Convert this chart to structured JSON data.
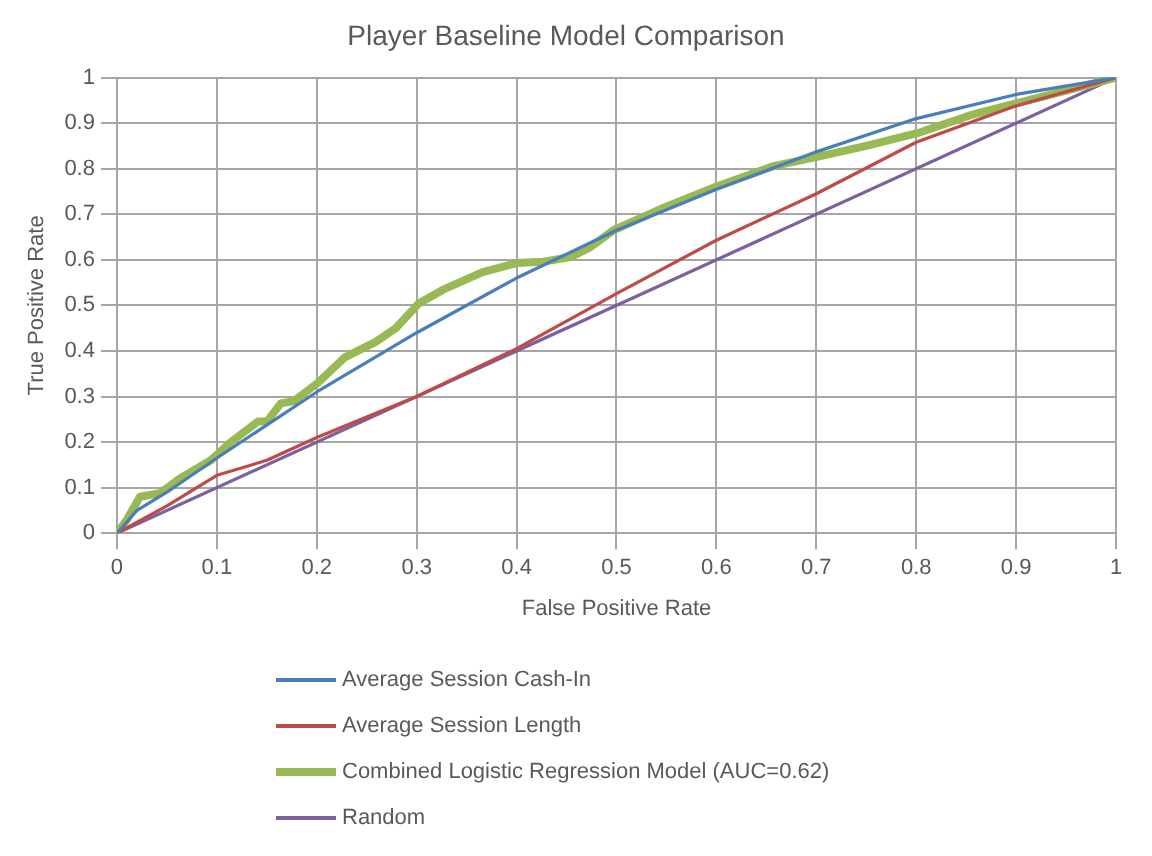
{
  "chart_data": {
    "type": "line",
    "title": "Player Baseline Model Comparison",
    "xlabel": "False Positive Rate",
    "ylabel": "True Positive Rate",
    "xlim": [
      0,
      1
    ],
    "ylim": [
      0,
      1
    ],
    "xticks": [
      0,
      0.1,
      0.2,
      0.3,
      0.4,
      0.5,
      0.6,
      0.7,
      0.8,
      0.9,
      1
    ],
    "yticks": [
      0,
      0.1,
      0.2,
      0.3,
      0.4,
      0.5,
      0.6,
      0.7,
      0.8,
      0.9,
      1
    ],
    "grid": true,
    "legend": "bottom",
    "marker": "none",
    "line_style": "solid",
    "series": [
      {
        "name": "Average Session Cash-In",
        "color": "#4a7ebb",
        "x": [
          0,
          0.02,
          0.05,
          0.1,
          0.2,
          0.3,
          0.4,
          0.5,
          0.6,
          0.7,
          0.8,
          0.9,
          1
        ],
        "values": [
          0,
          0.05,
          0.09,
          0.165,
          0.31,
          0.44,
          0.56,
          0.665,
          0.755,
          0.837,
          0.91,
          0.963,
          1
        ]
      },
      {
        "name": "Average Session Length",
        "color": "#be4b48",
        "x": [
          0,
          0.05,
          0.1,
          0.15,
          0.2,
          0.3,
          0.4,
          0.5,
          0.6,
          0.7,
          0.8,
          0.9,
          1
        ],
        "values": [
          0,
          0.06,
          0.127,
          0.16,
          0.21,
          0.3,
          0.405,
          0.526,
          0.643,
          0.745,
          0.858,
          0.938,
          1
        ]
      },
      {
        "name": "Combined Logistic Regression Model (AUC=0.62)",
        "color": "#98b954",
        "x": [
          0,
          0.01,
          0.023,
          0.043,
          0.063,
          0.094,
          0.114,
          0.141,
          0.15,
          0.164,
          0.177,
          0.201,
          0.228,
          0.259,
          0.279,
          0.302,
          0.326,
          0.366,
          0.4,
          0.427,
          0.454,
          0.474,
          0.497,
          0.548,
          0.599,
          0.656,
          0.703,
          0.75,
          0.804,
          0.858,
          0.912,
          0.953,
          1
        ],
        "values": [
          0,
          0.03,
          0.08,
          0.088,
          0.12,
          0.16,
          0.2,
          0.245,
          0.245,
          0.285,
          0.29,
          0.33,
          0.386,
          0.42,
          0.45,
          0.504,
          0.534,
          0.573,
          0.593,
          0.596,
          0.606,
          0.628,
          0.665,
          0.715,
          0.76,
          0.805,
          0.827,
          0.85,
          0.88,
          0.92,
          0.95,
          0.973,
          1
        ]
      },
      {
        "name": "Random",
        "color": "#7d60a0",
        "x": [
          0,
          1
        ],
        "values": [
          0,
          1
        ]
      }
    ]
  }
}
